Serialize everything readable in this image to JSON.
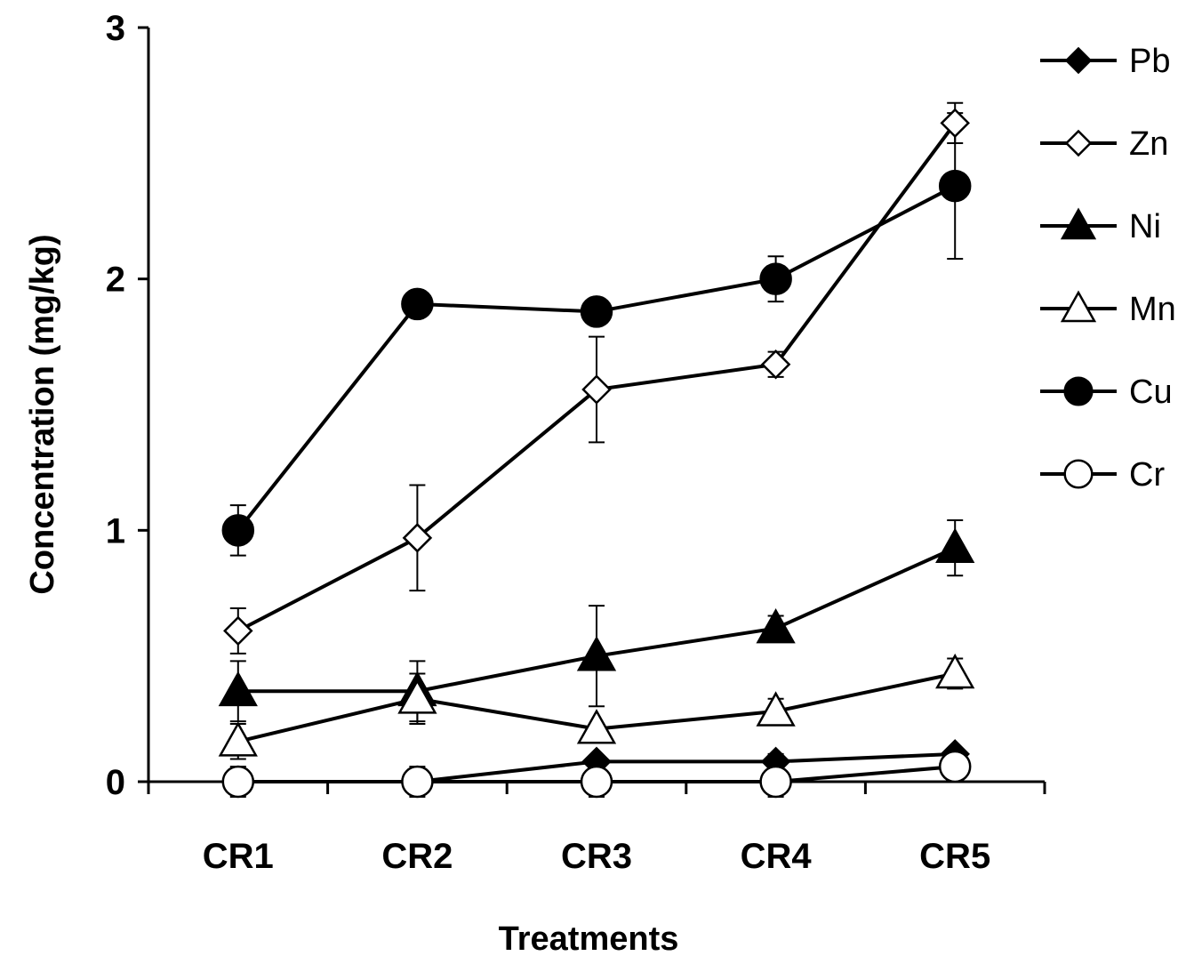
{
  "chart_data": {
    "type": "line",
    "title": "",
    "xlabel": "Treatments",
    "ylabel": "Concentration (mg/kg)",
    "categories": [
      "CR1",
      "CR2",
      "CR3",
      "CR4",
      "CR5"
    ],
    "ylim": [
      0,
      3
    ],
    "yticks": [
      0,
      1,
      2,
      3
    ],
    "grid": false,
    "legend_position": "right",
    "series": [
      {
        "name": "Pb",
        "marker": "diamond",
        "filled": true,
        "values": [
          0.0,
          0.0,
          0.08,
          0.08,
          0.11
        ],
        "errors": [
          0.06,
          0.06,
          0.02,
          0.03,
          0.02
        ]
      },
      {
        "name": "Zn",
        "marker": "diamond",
        "filled": false,
        "values": [
          0.6,
          0.97,
          1.56,
          1.66,
          2.62
        ],
        "errors": [
          0.09,
          0.21,
          0.21,
          0.05,
          0.08
        ]
      },
      {
        "name": "Ni",
        "marker": "triangle",
        "filled": true,
        "values": [
          0.36,
          0.36,
          0.5,
          0.61,
          0.93
        ],
        "errors": [
          0.12,
          0.12,
          0.2,
          0.05,
          0.11
        ]
      },
      {
        "name": "Mn",
        "marker": "triangle",
        "filled": false,
        "values": [
          0.16,
          0.33,
          0.21,
          0.28,
          0.43
        ],
        "errors": [
          0.07,
          0.1,
          0.02,
          0.05,
          0.06
        ]
      },
      {
        "name": "Cu",
        "marker": "circle",
        "filled": true,
        "values": [
          1.0,
          1.9,
          1.87,
          2.0,
          2.37
        ],
        "errors": [
          0.1,
          0.02,
          0.02,
          0.09,
          0.29
        ]
      },
      {
        "name": "Cr",
        "marker": "circle",
        "filled": false,
        "values": [
          0.0,
          0.0,
          0.0,
          0.0,
          0.06
        ],
        "errors": [
          0.05,
          0.05,
          0.06,
          0.06,
          0.03
        ]
      }
    ]
  }
}
